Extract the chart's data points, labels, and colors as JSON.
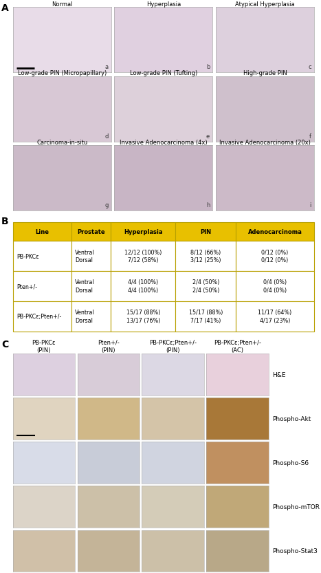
{
  "panel_A_label": "A",
  "panel_B_label": "B",
  "panel_C_label": "C",
  "panel_A_titles": [
    [
      "Normal",
      "Hyperplasia",
      "Atypical Hyperplasia"
    ],
    [
      "Low-grade PIN (Micropapillary)",
      "Low-grade PIN (Tufting)",
      "High-grade PIN"
    ],
    [
      "Carcinoma-in-situ",
      "Invasive Adenocarcinoma (4x)",
      "Invasive Adenocarcinoma (20x)"
    ]
  ],
  "panel_A_subletters": [
    [
      "a",
      "b",
      "c"
    ],
    [
      "d",
      "e",
      "f"
    ],
    [
      "g",
      "h",
      "i"
    ]
  ],
  "panel_B_header": [
    "Line",
    "Prostate",
    "Hyperplasia",
    "PIN",
    "Adenocarcinoma"
  ],
  "panel_B_rows": [
    [
      "PB-PKCε",
      "Ventral\nDorsal",
      "12/12 (100%)\n7/12 (58%)",
      "8/12 (66%)\n3/12 (25%)",
      "0/12 (0%)\n0/12 (0%)"
    ],
    [
      "Pten+/-",
      "Ventral\nDorsal",
      "4/4 (100%)\n4/4 (100%)",
      "2/4 (50%)\n2/4 (50%)",
      "0/4 (0%)\n0/4 (0%)"
    ],
    [
      "PB-PKCε;Pten+/-",
      "Ventral\nDorsal",
      "15/17 (88%)\n13/17 (76%)",
      "15/17 (88%)\n7/17 (41%)",
      "11/17 (64%)\n4/17 (23%)"
    ]
  ],
  "panel_C_col_headers": [
    "PB-PKCε\n(PIN)",
    "Pten+/-\n(PIN)",
    "PB-PKCε;Pten+/-\n(PIN)",
    "PB-PKCε;Pten+/-\n(AC)"
  ],
  "panel_C_row_labels": [
    "H&E",
    "Phospho-Akt",
    "Phospho-S6",
    "Phospho-mTOR",
    "Phospho-Stat3"
  ],
  "header_bg": "#e8c000",
  "header_text": "#000000",
  "table_border": "#b8a000",
  "table_bg": "#ffffff",
  "fig_bg": "#ffffff",
  "panel_label_size": 10,
  "title_size": 6.0,
  "subletter_size": 6,
  "table_fontsize": 6.0,
  "row_label_size": 6.5,
  "col_header_size": 6.0,
  "A_img_colors": [
    [
      "#e8dce8",
      "#e0d0e0",
      "#ddd0dd"
    ],
    [
      "#d8c8d5",
      "#ddd0da",
      "#cfc0cc"
    ],
    [
      "#cbbac8",
      "#c8b5c5",
      "#ccbac8"
    ]
  ],
  "C_img_colors": [
    [
      "#ddd0e0",
      "#d8ccd8",
      "#dcd8e4",
      "#e8d0dc"
    ],
    [
      "#e0d4c0",
      "#d0b888",
      "#d4c4a8",
      "#a87838"
    ],
    [
      "#d8dce8",
      "#c8ccd8",
      "#d0d4e0",
      "#c09060"
    ],
    [
      "#dcd4c8",
      "#ccc0a8",
      "#d4ccb8",
      "#c0a878"
    ],
    [
      "#d0c0a8",
      "#c4b498",
      "#ccc0a8",
      "#b8a888"
    ]
  ]
}
